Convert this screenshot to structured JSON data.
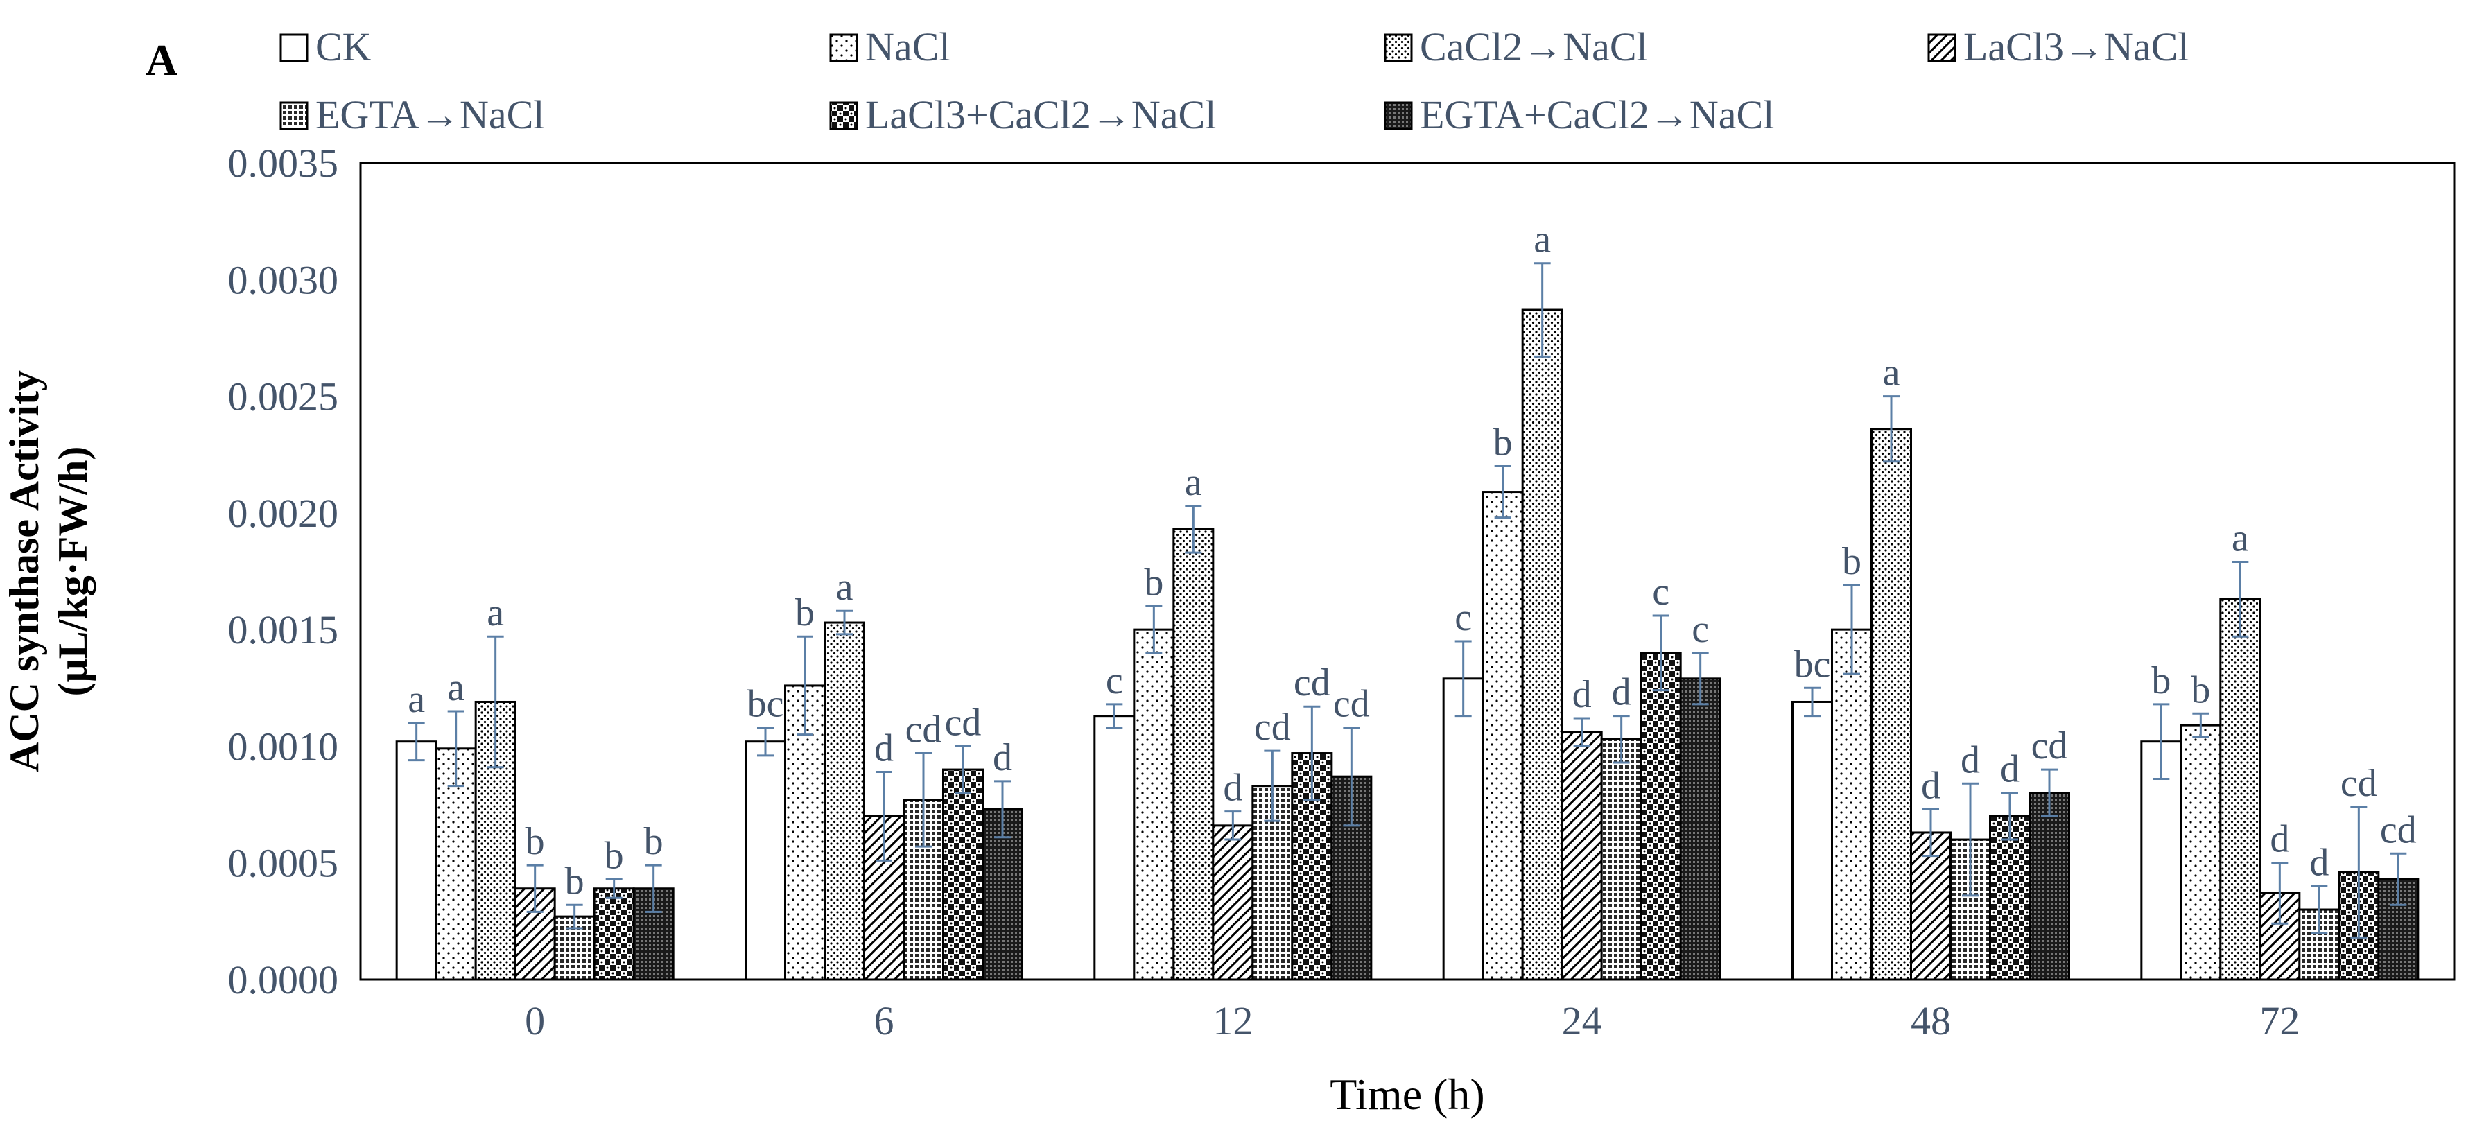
{
  "panel_label": "A",
  "colors": {
    "axis_text": "#44546A",
    "error_bar": "#5B7FA6",
    "stroke": "#000000",
    "background": "#ffffff"
  },
  "legend_patterns": [
    {
      "name": "CK",
      "pattern": "white"
    },
    {
      "name": "NaCl",
      "pattern": "dots-sparse"
    },
    {
      "name": "CaCl2→NaCl",
      "pattern": "dots-dense"
    },
    {
      "name": "LaCl3→NaCl",
      "pattern": "diagonal"
    },
    {
      "name": "EGTA→NaCl",
      "pattern": "grid-fine"
    },
    {
      "name": "LaCl3+CaCl2→NaCl",
      "pattern": "checker"
    },
    {
      "name": "EGTA+CaCl2→NaCl",
      "pattern": "crosshatch-dark"
    }
  ],
  "chart_data": {
    "type": "bar",
    "title": "",
    "xlabel": "Time (h)",
    "ylabel": [
      "ACC synthase Activity",
      "(μL/kg·FW/h)"
    ],
    "ylim": [
      0,
      0.0035
    ],
    "yticks": [
      "0.0000",
      "0.0005",
      "0.0010",
      "0.0015",
      "0.0020",
      "0.0025",
      "0.0030",
      "0.0035"
    ],
    "ytick_values": [
      0,
      0.0005,
      0.001,
      0.0015,
      0.002,
      0.0025,
      0.003,
      0.0035
    ],
    "categories": [
      "0",
      "6",
      "12",
      "24",
      "48",
      "72"
    ],
    "grid": false,
    "legend_position": "top",
    "series": [
      {
        "name": "CK",
        "values": [
          0.00102,
          0.00102,
          0.00113,
          0.00129,
          0.00119,
          0.00102
        ],
        "errors": [
          8e-05,
          6e-05,
          5e-05,
          0.00016,
          6e-05,
          0.00016
        ],
        "labels": [
          "a",
          "bc",
          "c",
          "c",
          "bc",
          "b"
        ]
      },
      {
        "name": "NaCl",
        "values": [
          0.00099,
          0.00126,
          0.0015,
          0.00209,
          0.0015,
          0.00109
        ],
        "errors": [
          0.00016,
          0.00021,
          0.0001,
          0.00011,
          0.00019,
          5e-05
        ],
        "labels": [
          "a",
          "b",
          "b",
          "b",
          "b",
          "b"
        ]
      },
      {
        "name": "CaCl2→NaCl",
        "values": [
          0.00119,
          0.00153,
          0.00193,
          0.00287,
          0.00236,
          0.00163
        ],
        "errors": [
          0.00028,
          5e-05,
          0.0001,
          0.0002,
          0.00014,
          0.00016
        ],
        "labels": [
          "a",
          "a",
          "a",
          "a",
          "a",
          "a"
        ]
      },
      {
        "name": "LaCl3→NaCl",
        "values": [
          0.00039,
          0.0007,
          0.00066,
          0.00106,
          0.00063,
          0.00037
        ],
        "errors": [
          0.0001,
          0.00019,
          6e-05,
          6e-05,
          0.0001,
          0.00013
        ],
        "labels": [
          "b",
          "d",
          "d",
          "d",
          "d",
          "d"
        ]
      },
      {
        "name": "EGTA→NaCl",
        "values": [
          0.00027,
          0.00077,
          0.00083,
          0.00103,
          0.0006,
          0.0003
        ],
        "errors": [
          5e-05,
          0.0002,
          0.00015,
          0.0001,
          0.00024,
          0.0001
        ],
        "labels": [
          "b",
          "cd",
          "cd",
          "d",
          "d",
          "d"
        ]
      },
      {
        "name": "LaCl3+CaCl2→NaCl",
        "values": [
          0.00039,
          0.0009,
          0.00097,
          0.0014,
          0.0007,
          0.00046
        ],
        "errors": [
          4e-05,
          0.0001,
          0.0002,
          0.00016,
          0.0001,
          0.00028
        ],
        "labels": [
          "b",
          "cd",
          "cd",
          "c",
          "d",
          "cd"
        ]
      },
      {
        "name": "EGTA+CaCl2→NaCl",
        "values": [
          0.00039,
          0.00073,
          0.00087,
          0.00129,
          0.0008,
          0.00043
        ],
        "errors": [
          0.0001,
          0.00012,
          0.00021,
          0.00011,
          0.0001,
          0.00011
        ],
        "labels": [
          "b",
          "d",
          "cd",
          "c",
          "cd",
          "cd"
        ]
      }
    ]
  }
}
